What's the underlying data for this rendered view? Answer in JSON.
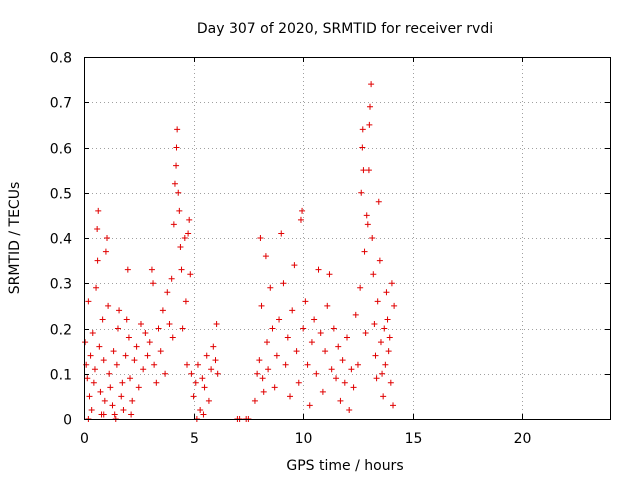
{
  "chart_data": {
    "type": "scatter",
    "title": "Day 307 of 2020, SRMTID for receiver rvdi",
    "xlabel": "GPS time / hours",
    "ylabel": "SRMTID / TECUs",
    "xlim": [
      0,
      24
    ],
    "ylim": [
      0,
      0.8
    ],
    "xticks": [
      0,
      5,
      10,
      15,
      20
    ],
    "xtick_labels": [
      "0",
      "5",
      "10",
      "15",
      "20"
    ],
    "yticks": [
      0,
      0.1,
      0.2,
      0.3,
      0.4,
      0.5,
      0.6,
      0.7,
      0.8
    ],
    "ytick_labels": [
      "0",
      "0.1",
      "0.2",
      "0.3",
      "0.4",
      "0.5",
      "0.6",
      "0.7",
      "0.8"
    ],
    "grid": true,
    "marker": "+",
    "marker_color": "#e00000",
    "series": [
      {
        "name": "SRMTID",
        "points": [
          [
            0.05,
            0.17
          ],
          [
            0.1,
            0.12
          ],
          [
            0.15,
            0.09
          ],
          [
            0.2,
            0.26
          ],
          [
            0.25,
            0.05
          ],
          [
            0.3,
            0.14
          ],
          [
            0.35,
            0.02
          ],
          [
            0.4,
            0.19
          ],
          [
            0.45,
            0.08
          ],
          [
            0.5,
            0.11
          ],
          [
            0.55,
            0.29
          ],
          [
            0.6,
            0.42
          ],
          [
            0.62,
            0.35
          ],
          [
            0.65,
            0.46
          ],
          [
            0.7,
            0.16
          ],
          [
            0.75,
            0.06
          ],
          [
            0.8,
            0.01
          ],
          [
            0.85,
            0.22
          ],
          [
            0.9,
            0.13
          ],
          [
            0.95,
            0.04
          ],
          [
            1.0,
            0.37
          ],
          [
            1.05,
            0.4
          ],
          [
            1.1,
            0.25
          ],
          [
            1.15,
            0.1
          ],
          [
            1.2,
            0.07
          ],
          [
            1.3,
            0.03
          ],
          [
            1.35,
            0.15
          ],
          [
            1.4,
            0.01
          ],
          [
            1.5,
            0.12
          ],
          [
            1.55,
            0.2
          ],
          [
            1.6,
            0.24
          ],
          [
            1.7,
            0.05
          ],
          [
            1.75,
            0.08
          ],
          [
            1.8,
            0.02
          ],
          [
            1.9,
            0.14
          ],
          [
            1.95,
            0.22
          ],
          [
            2.0,
            0.33
          ],
          [
            2.05,
            0.18
          ],
          [
            2.1,
            0.09
          ],
          [
            2.2,
            0.04
          ],
          [
            2.3,
            0.13
          ],
          [
            2.4,
            0.16
          ],
          [
            2.5,
            0.07
          ],
          [
            2.6,
            0.21
          ],
          [
            2.7,
            0.11
          ],
          [
            2.8,
            0.19
          ],
          [
            2.9,
            0.14
          ],
          [
            3.0,
            0.17
          ],
          [
            3.1,
            0.33
          ],
          [
            3.15,
            0.3
          ],
          [
            3.2,
            0.12
          ],
          [
            3.3,
            0.08
          ],
          [
            3.4,
            0.2
          ],
          [
            3.5,
            0.15
          ],
          [
            3.6,
            0.24
          ],
          [
            3.7,
            0.1
          ],
          [
            3.8,
            0.28
          ],
          [
            3.9,
            0.21
          ],
          [
            4.0,
            0.31
          ],
          [
            4.05,
            0.18
          ],
          [
            4.1,
            0.43
          ],
          [
            4.15,
            0.52
          ],
          [
            4.2,
            0.56
          ],
          [
            4.22,
            0.6
          ],
          [
            4.25,
            0.64
          ],
          [
            4.3,
            0.5
          ],
          [
            4.35,
            0.46
          ],
          [
            4.4,
            0.38
          ],
          [
            4.45,
            0.33
          ],
          [
            4.5,
            0.2
          ],
          [
            4.6,
            0.4
          ],
          [
            4.65,
            0.26
          ],
          [
            4.7,
            0.12
          ],
          [
            4.75,
            0.41
          ],
          [
            4.8,
            0.44
          ],
          [
            4.85,
            0.32
          ],
          [
            4.9,
            0.1
          ],
          [
            5.0,
            0.05
          ],
          [
            5.1,
            0.08
          ],
          [
            5.2,
            0.12
          ],
          [
            5.3,
            0.02
          ],
          [
            5.4,
            0.09
          ],
          [
            5.5,
            0.07
          ],
          [
            5.6,
            0.14
          ],
          [
            5.7,
            0.04
          ],
          [
            5.8,
            0.11
          ],
          [
            5.9,
            0.16
          ],
          [
            6.0,
            0.13
          ],
          [
            6.05,
            0.21
          ],
          [
            6.1,
            0.1
          ],
          [
            0.2,
            0.0
          ],
          [
            0.9,
            0.01
          ],
          [
            1.45,
            0.0
          ],
          [
            2.15,
            0.01
          ],
          [
            5.15,
            0.0
          ],
          [
            5.45,
            0.01
          ],
          [
            7.0,
            0.0
          ],
          [
            7.1,
            0.0
          ],
          [
            7.4,
            0.0
          ],
          [
            7.5,
            0.0
          ],
          [
            7.8,
            0.04
          ],
          [
            7.9,
            0.1
          ],
          [
            8.0,
            0.13
          ],
          [
            8.05,
            0.4
          ],
          [
            8.1,
            0.25
          ],
          [
            8.15,
            0.09
          ],
          [
            8.2,
            0.06
          ],
          [
            8.3,
            0.36
          ],
          [
            8.35,
            0.17
          ],
          [
            8.4,
            0.11
          ],
          [
            8.5,
            0.29
          ],
          [
            8.6,
            0.2
          ],
          [
            8.7,
            0.07
          ],
          [
            8.8,
            0.14
          ],
          [
            8.9,
            0.22
          ],
          [
            9.0,
            0.41
          ],
          [
            9.1,
            0.3
          ],
          [
            9.2,
            0.12
          ],
          [
            9.3,
            0.18
          ],
          [
            9.4,
            0.05
          ],
          [
            9.5,
            0.24
          ],
          [
            9.6,
            0.34
          ],
          [
            9.7,
            0.15
          ],
          [
            9.8,
            0.08
          ],
          [
            9.9,
            0.44
          ],
          [
            9.95,
            0.46
          ],
          [
            10.0,
            0.2
          ],
          [
            10.1,
            0.26
          ],
          [
            10.2,
            0.12
          ],
          [
            10.3,
            0.03
          ],
          [
            10.4,
            0.17
          ],
          [
            10.5,
            0.22
          ],
          [
            10.6,
            0.1
          ],
          [
            10.7,
            0.33
          ],
          [
            10.8,
            0.19
          ],
          [
            10.9,
            0.06
          ],
          [
            11.0,
            0.15
          ],
          [
            11.1,
            0.25
          ],
          [
            11.2,
            0.32
          ],
          [
            11.3,
            0.11
          ],
          [
            11.4,
            0.2
          ],
          [
            11.5,
            0.09
          ],
          [
            11.6,
            0.16
          ],
          [
            11.7,
            0.04
          ],
          [
            11.8,
            0.13
          ],
          [
            11.9,
            0.08
          ],
          [
            12.0,
            0.18
          ],
          [
            12.1,
            0.02
          ],
          [
            12.2,
            0.11
          ],
          [
            12.3,
            0.07
          ],
          [
            12.4,
            0.23
          ],
          [
            12.5,
            0.12
          ],
          [
            12.6,
            0.29
          ],
          [
            12.65,
            0.5
          ],
          [
            12.7,
            0.6
          ],
          [
            12.72,
            0.64
          ],
          [
            12.75,
            0.55
          ],
          [
            12.8,
            0.37
          ],
          [
            12.85,
            0.19
          ],
          [
            12.9,
            0.45
          ],
          [
            12.95,
            0.43
          ],
          [
            13.0,
            0.55
          ],
          [
            13.02,
            0.65
          ],
          [
            13.05,
            0.69
          ],
          [
            13.1,
            0.74
          ],
          [
            13.15,
            0.4
          ],
          [
            13.2,
            0.32
          ],
          [
            13.25,
            0.21
          ],
          [
            13.3,
            0.14
          ],
          [
            13.35,
            0.09
          ],
          [
            13.4,
            0.26
          ],
          [
            13.45,
            0.48
          ],
          [
            13.5,
            0.35
          ],
          [
            13.55,
            0.17
          ],
          [
            13.6,
            0.1
          ],
          [
            13.65,
            0.05
          ],
          [
            13.7,
            0.2
          ],
          [
            13.8,
            0.28
          ],
          [
            13.9,
            0.15
          ],
          [
            14.0,
            0.08
          ],
          [
            14.05,
            0.3
          ],
          [
            14.1,
            0.03
          ],
          [
            14.15,
            0.25
          ],
          [
            13.75,
            0.12
          ],
          [
            13.85,
            0.22
          ],
          [
            13.95,
            0.18
          ]
        ]
      }
    ]
  }
}
